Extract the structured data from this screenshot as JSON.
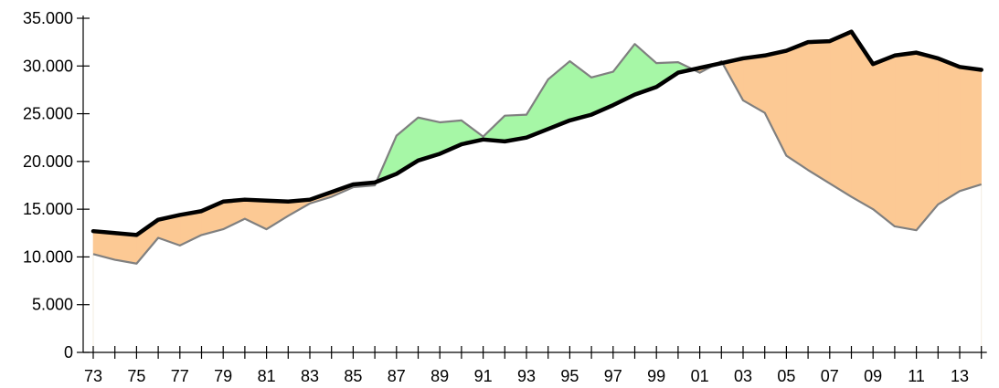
{
  "chart_data": {
    "type": "area",
    "x_labels": [
      "73",
      "75",
      "77",
      "79",
      "81",
      "83",
      "85",
      "87",
      "89",
      "91",
      "93",
      "95",
      "97",
      "99",
      "01",
      "03",
      "05",
      "07",
      "09",
      "11",
      "13"
    ],
    "x": [
      1973,
      1974,
      1975,
      1976,
      1977,
      1978,
      1979,
      1980,
      1981,
      1982,
      1983,
      1984,
      1985,
      1986,
      1987,
      1988,
      1989,
      1990,
      1991,
      1992,
      1993,
      1994,
      1995,
      1996,
      1997,
      1998,
      1999,
      2000,
      2001,
      2002,
      2003,
      2004,
      2005,
      2006,
      2007,
      2008,
      2009,
      2010,
      2011,
      2012,
      2013,
      2014
    ],
    "series": [
      {
        "values": [
          12700,
          12500,
          12300,
          13900,
          14400,
          14800,
          15800,
          16000,
          15900,
          15800,
          16000,
          16800,
          17600,
          17800,
          18700,
          20100,
          20800,
          21800,
          22300,
          22100,
          22500,
          23400,
          24300,
          24900,
          25900,
          27000,
          27800,
          29300,
          29800,
          30300,
          30800,
          31100,
          31600,
          32500,
          32600,
          33600,
          30200,
          31100,
          31400,
          30800,
          29900,
          29600
        ]
      },
      {
        "values": [
          10300,
          9700,
          9300,
          12000,
          11200,
          12300,
          12900,
          14000,
          12900,
          14300,
          15600,
          16300,
          17300,
          17500,
          22700,
          24600,
          24100,
          24300,
          22600,
          24800,
          24900,
          28600,
          30500,
          28800,
          29400,
          32300,
          30300,
          30400,
          29300,
          30500,
          26400,
          25100,
          20600,
          19100,
          17700,
          16300,
          15000,
          13200,
          12800,
          15500,
          16900,
          17600
        ]
      }
    ],
    "y_ticks": [
      "0",
      "5.000",
      "10.000",
      "15.000",
      "20.000",
      "25.000",
      "30.000",
      "35.000"
    ],
    "ylim": [
      0,
      35000
    ],
    "colors": {
      "fill_above": "#a6f7a6",
      "fill_below": "#fcc994",
      "bold_line": "#000000",
      "thin_line": "#808080",
      "axis": "#000000"
    },
    "grid": false
  }
}
